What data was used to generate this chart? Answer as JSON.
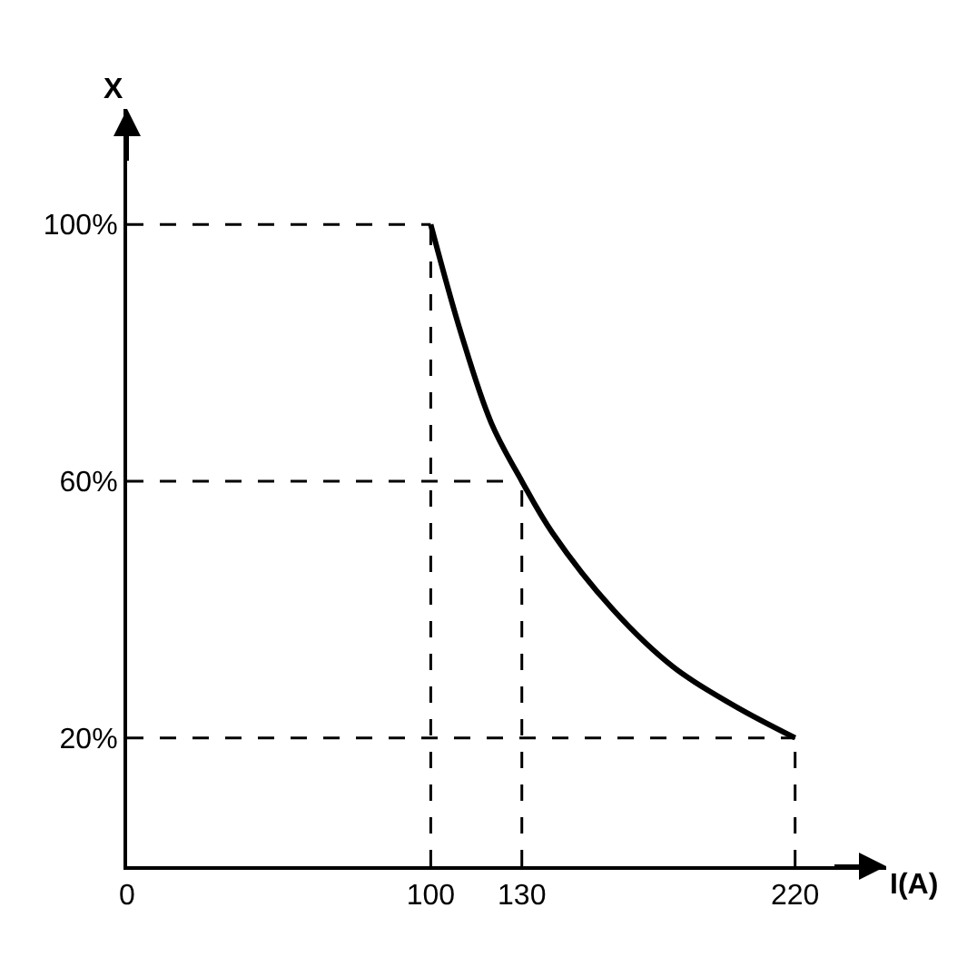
{
  "chart_data": {
    "type": "line",
    "xlabel": "I(A)",
    "ylabel": "X",
    "x": [
      100,
      110,
      120,
      130,
      140,
      160,
      180,
      200,
      220
    ],
    "series": [
      {
        "color": "#000000",
        "values": [
          100,
          83,
          69,
          60,
          52,
          40,
          31,
          25,
          20
        ]
      }
    ],
    "xlim": [
      0,
      250
    ],
    "ylim": [
      0,
      118
    ],
    "xticks": [
      0,
      100,
      130,
      220
    ],
    "yticks": [
      {
        "value": 20,
        "label": "20%"
      },
      {
        "value": 60,
        "label": "60%"
      },
      {
        "value": 100,
        "label": "100%"
      }
    ],
    "ref_lines": [
      {
        "axis": "x",
        "value": 100,
        "line_style": "dashed",
        "color": "#000000"
      },
      {
        "axis": "x",
        "value": 130,
        "line_style": "dashed",
        "color": "#000000"
      },
      {
        "axis": "x",
        "value": 220,
        "line_style": "dashed",
        "color": "#000000"
      },
      {
        "axis": "y",
        "value": 100,
        "line_style": "dashed",
        "color": "#000000"
      },
      {
        "axis": "y",
        "value": 60,
        "line_style": "dashed",
        "color": "#000000"
      },
      {
        "axis": "y",
        "value": 20,
        "line_style": "dashed",
        "color": "#000000"
      }
    ],
    "marker": "none",
    "line_style": "solid"
  }
}
